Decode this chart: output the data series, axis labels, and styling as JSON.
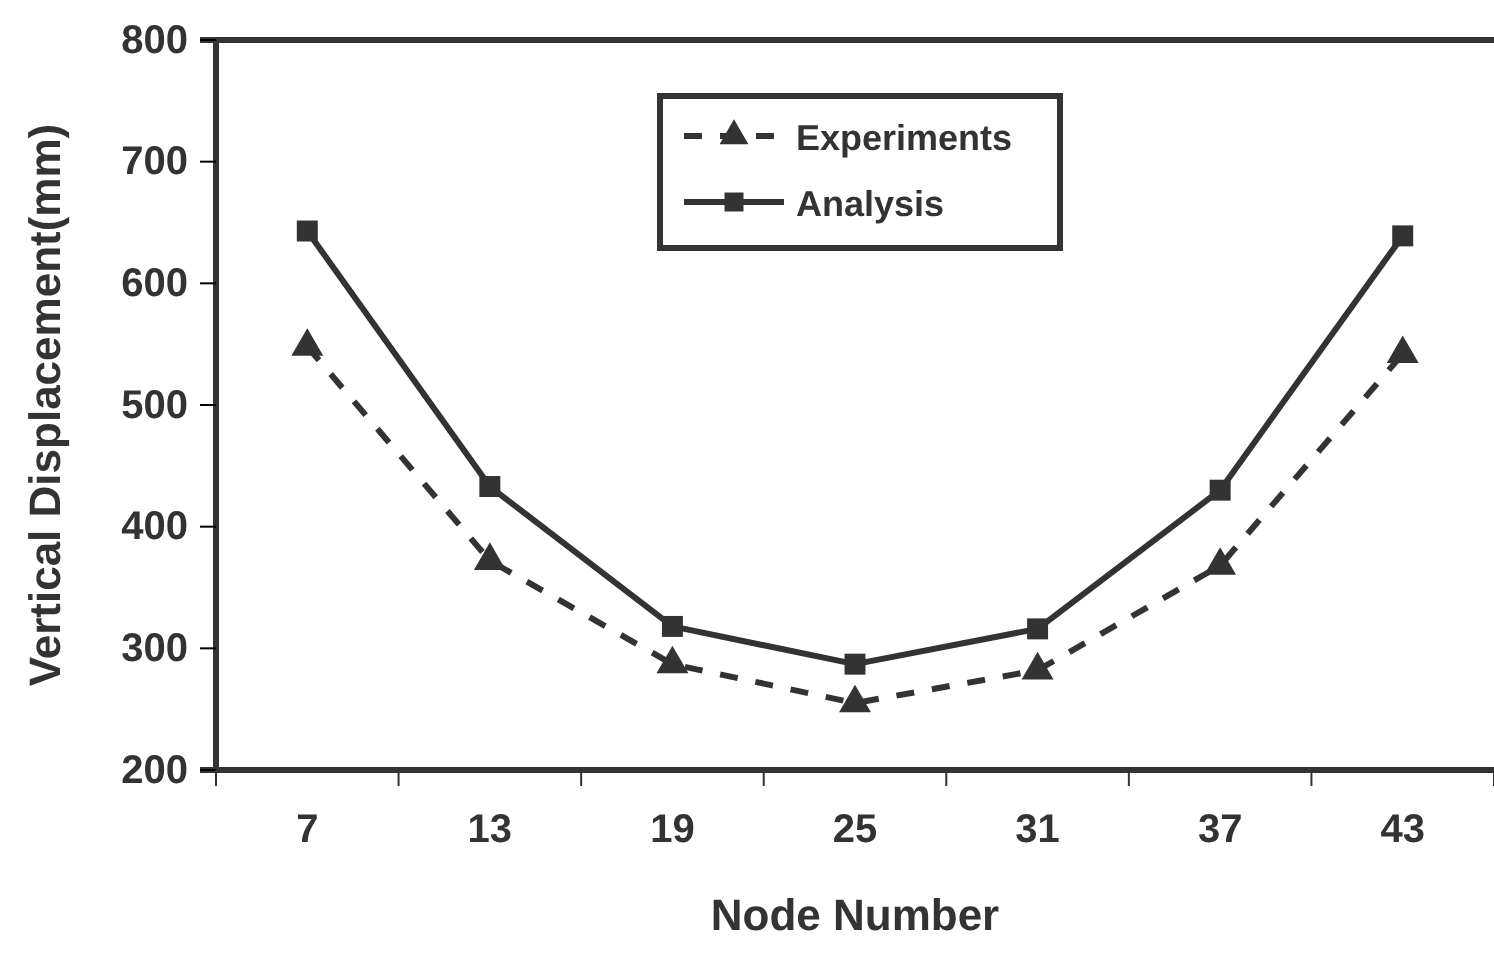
{
  "chart_data": {
    "type": "line",
    "xlabel": "Node Number",
    "ylabel": "Vertical Displacement(mm)",
    "categories": [
      "7",
      "13",
      "19",
      "25",
      "31",
      "37",
      "43"
    ],
    "ylim": [
      200,
      800
    ],
    "yticks": [
      200,
      300,
      400,
      500,
      600,
      700,
      800
    ],
    "grid": false,
    "legend": "top",
    "series": [
      {
        "name": "Experiments",
        "color": "#333333",
        "marker": "triangle",
        "line_style": "dashed",
        "values": [
          548,
          372,
          287,
          255,
          282,
          368,
          542
        ]
      },
      {
        "name": "Analysis",
        "color": "#333333",
        "marker": "square",
        "line_style": "solid",
        "values": [
          643,
          433,
          318,
          287,
          316,
          430,
          639
        ]
      }
    ]
  }
}
